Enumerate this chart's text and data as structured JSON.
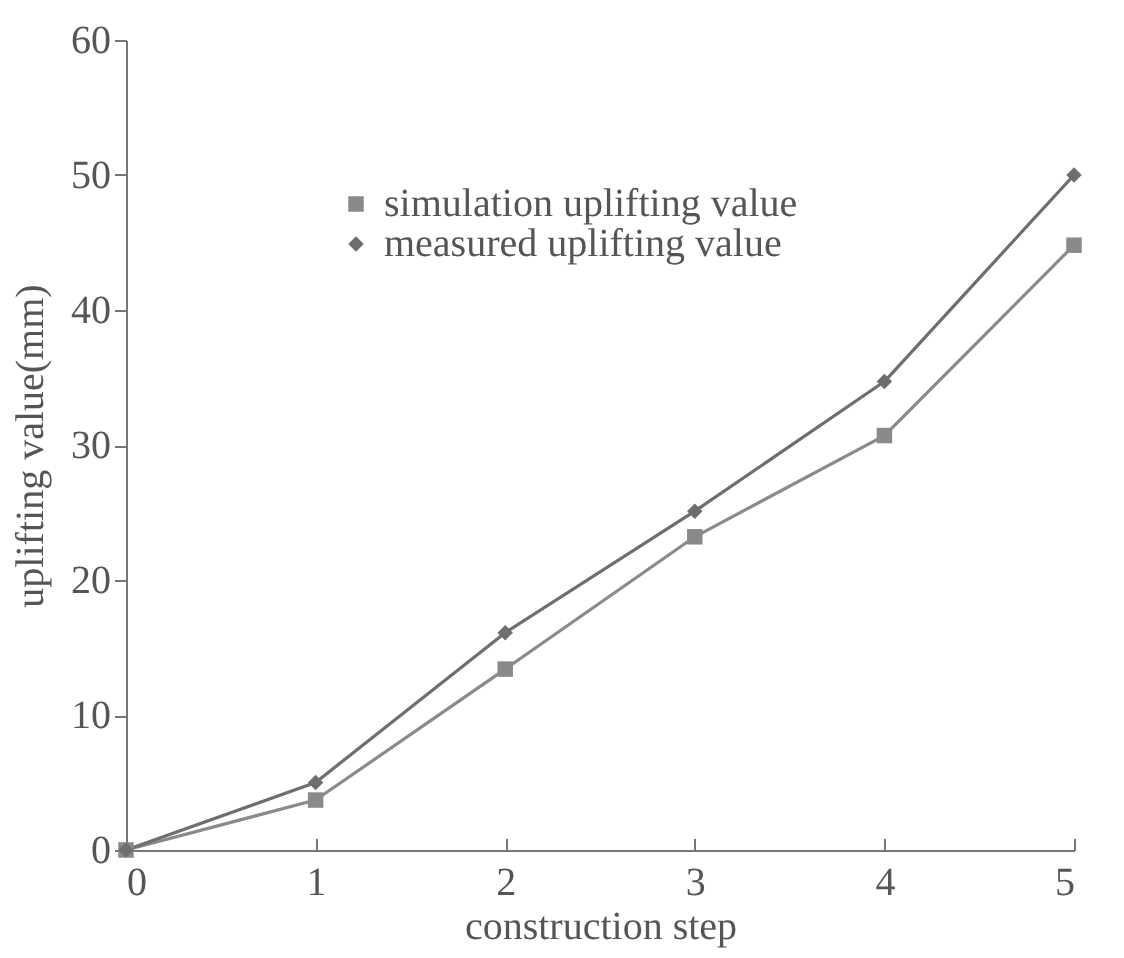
{
  "chart_data": {
    "type": "line",
    "xlabel": "construction step",
    "ylabel": "uplifting value(mm)",
    "x": [
      0,
      1,
      2,
      3,
      4,
      5
    ],
    "xlim": [
      0,
      5
    ],
    "xticks": [
      0,
      1,
      2,
      3,
      4,
      5
    ],
    "ylim": [
      0,
      60
    ],
    "yticks": [
      0,
      10,
      20,
      30,
      40,
      50,
      60
    ],
    "grid": false,
    "legend": "top left",
    "line_style": "solid",
    "series": [
      {
        "name": "simulation uplifting value",
        "color": "#8a8a8a",
        "marker": "square",
        "values": [
          0,
          3.7,
          13.4,
          23.2,
          30.7,
          44.8
        ]
      },
      {
        "name": "measured uplifting value",
        "color": "#6e6e6e",
        "marker": "diamond",
        "values": [
          0,
          5.0,
          16.1,
          25.1,
          34.7,
          50.0
        ]
      }
    ]
  }
}
